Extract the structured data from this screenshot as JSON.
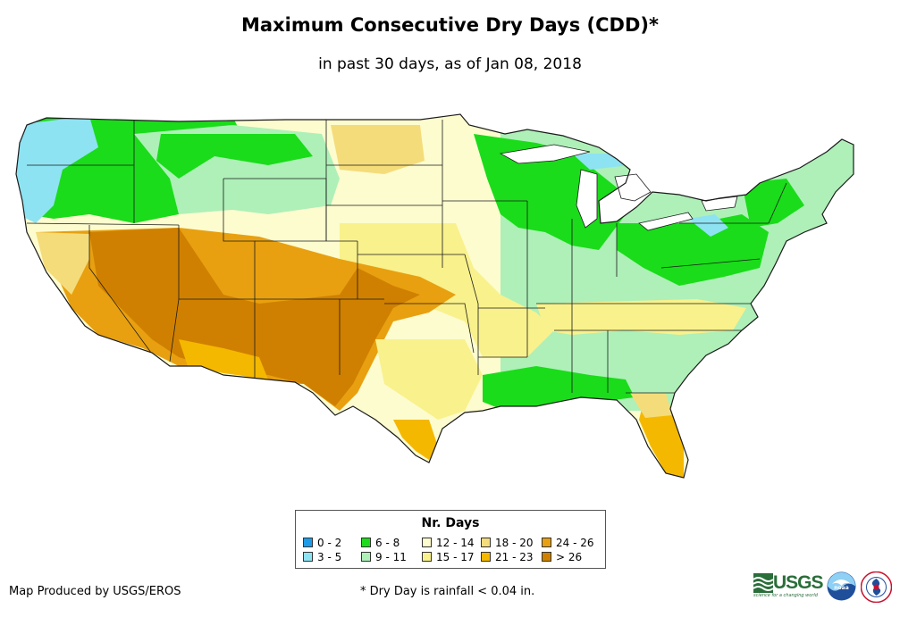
{
  "header": {
    "title": "Maximum Consecutive Dry Days (CDD)*",
    "subtitle": "in past 30 days, as of Jan 08, 2018"
  },
  "legend": {
    "title": "Nr. Days",
    "items": [
      {
        "label": "0 - 2",
        "color": "#1e9be8"
      },
      {
        "label": "3 - 5",
        "color": "#8ee3f2"
      },
      {
        "label": "6 - 8",
        "color": "#1adc1a"
      },
      {
        "label": "9 - 11",
        "color": "#aef0b8"
      },
      {
        "label": "12 - 14",
        "color": "#fdfccf"
      },
      {
        "label": "15 - 17",
        "color": "#f9f18c"
      },
      {
        "label": "18 - 20",
        "color": "#f5dc7a"
      },
      {
        "label": "21 - 23",
        "color": "#f5b800"
      },
      {
        "label": "24 - 26",
        "color": "#e8a010"
      },
      {
        "label": "> 26",
        "color": "#d08000"
      }
    ]
  },
  "footer": {
    "credit": "Map Produced by USGS/EROS",
    "footnote": "* Dry Day is rainfall < 0.04 in."
  },
  "logos": {
    "usgs_name": "USGS",
    "usgs_tagline": "science for a changing world",
    "noaa_name": "noaa"
  },
  "colors": {
    "state_border": "#1a1a1a",
    "usgs_green": "#2a6e3a"
  }
}
